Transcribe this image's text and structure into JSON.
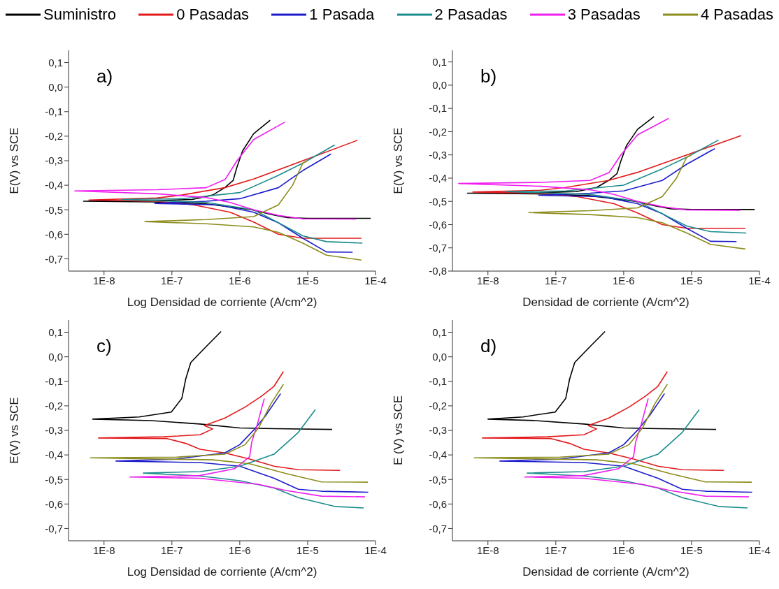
{
  "chart_data": [
    {
      "type": "line",
      "annotations": [
        "a)"
      ],
      "xlabel": "Log Densidad de corriente (A/cm^2)",
      "ylabel": "E(V) vs SCE",
      "log": "x",
      "legend": "top",
      "xlim": [
        3e-09,
        0.0001
      ],
      "xticks": [
        {
          "value": 1e-08,
          "label": "1E-8"
        },
        {
          "value": 1e-07,
          "label": "1E-7"
        },
        {
          "value": 1e-06,
          "label": "1E-6"
        },
        {
          "value": 1e-05,
          "label": "1E-5"
        },
        {
          "value": 0.0001,
          "label": "1E-4"
        }
      ],
      "ylim": [
        -0.75,
        0.15
      ],
      "yticks": [
        {
          "value": 0.1,
          "label": "0,1"
        },
        {
          "value": 0,
          "label": "0,0"
        },
        {
          "value": -0.1,
          "label": "-0,1"
        },
        {
          "value": -0.2,
          "label": "-0,2"
        },
        {
          "value": -0.3,
          "label": "-0,3"
        },
        {
          "value": -0.4,
          "label": "-0,4"
        },
        {
          "value": -0.5,
          "label": "-0,5"
        },
        {
          "value": -0.6,
          "label": "-0,6"
        },
        {
          "value": -0.7,
          "label": "-0,7"
        }
      ],
      "series": [
        {
          "name": "Suministro",
          "color": "#000000",
          "x": [
            8.5e-05,
            1e-05,
            5e-06,
            3e-06,
            1.5e-06,
            8e-07,
            3e-07,
            5e-08,
            5e-09,
            5e-08,
            2e-07,
            4e-07,
            6e-07,
            8e-07,
            9e-07,
            1.1e-06,
            1.6e-06,
            2.8e-06
          ],
          "values": [
            -0.535,
            -0.535,
            -0.532,
            -0.52,
            -0.5,
            -0.49,
            -0.475,
            -0.468,
            -0.465,
            -0.463,
            -0.458,
            -0.44,
            -0.41,
            -0.38,
            -0.33,
            -0.26,
            -0.19,
            -0.135
          ]
        },
        {
          "name": "0 Pasadas",
          "color": "#e3191c",
          "x": [
            6.2e-05,
            8.5e-06,
            3.7e-06,
            1.6e-06,
            7.2e-07,
            2.1e-07,
            6e-08,
            6e-09,
            6e-08,
            1.4e-07,
            6e-07,
            1.6e-06,
            8.5e-06,
            5.4e-05
          ],
          "values": [
            -0.616,
            -0.616,
            -0.6,
            -0.55,
            -0.51,
            -0.48,
            -0.465,
            -0.46,
            -0.452,
            -0.44,
            -0.41,
            -0.375,
            -0.3,
            -0.217
          ]
        },
        {
          "name": "1 Pasada",
          "color": "#1c1ccc",
          "x": [
            4.6e-05,
            1.9e-05,
            8.5e-06,
            3.7e-06,
            1.6e-06,
            4.8e-07,
            5.6e-08,
            3.2e-07,
            1e-06,
            3.7e-06,
            8.5e-06,
            2.2e-05
          ],
          "values": [
            -0.673,
            -0.672,
            -0.616,
            -0.553,
            -0.51,
            -0.48,
            -0.474,
            -0.465,
            -0.455,
            -0.41,
            -0.34,
            -0.273
          ]
        },
        {
          "name": "2 Pasadas",
          "color": "#1a8c8c",
          "x": [
            6.4e-05,
            1.9e-05,
            8.5e-06,
            3.7e-06,
            1.6e-06,
            3.2e-07,
            1.8e-08,
            1.4e-07,
            1e-06,
            3.7e-06,
            8.5e-06,
            2.5e-05
          ],
          "values": [
            -0.636,
            -0.63,
            -0.606,
            -0.553,
            -0.5,
            -0.47,
            -0.458,
            -0.455,
            -0.43,
            -0.36,
            -0.31,
            -0.236
          ]
        },
        {
          "name": "3 Pasadas",
          "color": "#f01cf0",
          "x": [
            5.2e-05,
            8.5e-06,
            3.7e-06,
            1.6e-06,
            7.2e-07,
            3.2e-07,
            6.1e-08,
            3.7e-09,
            6.1e-08,
            3.2e-07,
            6.1e-07,
            9.1e-07,
            1.6e-06,
            4.6e-06
          ],
          "values": [
            -0.538,
            -0.537,
            -0.523,
            -0.5,
            -0.47,
            -0.45,
            -0.435,
            -0.423,
            -0.418,
            -0.41,
            -0.376,
            -0.3,
            -0.214,
            -0.143
          ]
        },
        {
          "name": "4 Pasadas",
          "color": "#8c8c1c",
          "x": [
            6.2e-05,
            1.9e-05,
            8.5e-06,
            3.7e-06,
            1.6e-06,
            3.2e-07,
            4e-08,
            3.2e-07,
            1.6e-06,
            3.7e-06,
            6e-06,
            8.5e-06,
            1e-05
          ],
          "values": [
            -0.705,
            -0.685,
            -0.636,
            -0.592,
            -0.57,
            -0.557,
            -0.548,
            -0.54,
            -0.528,
            -0.48,
            -0.4,
            -0.31,
            -0.3
          ]
        }
      ]
    },
    {
      "type": "line",
      "annotations": [
        "b)"
      ],
      "xlabel": "Densidad de corriente (A/cm^2)",
      "ylabel": "E(V) vs SCE",
      "log": "x",
      "xlim": [
        3e-09,
        0.0001
      ],
      "xticks": [
        {
          "value": 1e-08,
          "label": "1E-8"
        },
        {
          "value": 1e-07,
          "label": "1E-7"
        },
        {
          "value": 1e-06,
          "label": "1E-6"
        },
        {
          "value": 1e-05,
          "label": "1E-5"
        },
        {
          "value": 0.0001,
          "label": "1E-4"
        }
      ],
      "ylim": [
        -0.8,
        0.15
      ],
      "yticks": [
        {
          "value": 0.1,
          "label": "0,1"
        },
        {
          "value": 0,
          "label": "0,0"
        },
        {
          "value": -0.1,
          "label": "-0,1"
        },
        {
          "value": -0.2,
          "label": "-0,2"
        },
        {
          "value": -0.3,
          "label": "-0,3"
        },
        {
          "value": -0.4,
          "label": "-0,4"
        },
        {
          "value": -0.5,
          "label": "-0,5"
        },
        {
          "value": -0.6,
          "label": "-0,6"
        },
        {
          "value": -0.7,
          "label": "-0,7"
        },
        {
          "value": -0.8,
          "label": "-0,8"
        }
      ],
      "series": [
        {
          "color": "#000000",
          "x": [
            8.5e-05,
            1e-05,
            5e-06,
            3e-06,
            1.5e-06,
            8e-07,
            3e-07,
            5e-08,
            5e-09,
            5e-08,
            2e-07,
            4e-07,
            6e-07,
            8e-07,
            9e-07,
            1.1e-06,
            1.6e-06,
            2.8e-06
          ],
          "values": [
            -0.535,
            -0.535,
            -0.532,
            -0.52,
            -0.5,
            -0.49,
            -0.475,
            -0.468,
            -0.465,
            -0.463,
            -0.458,
            -0.44,
            -0.41,
            -0.38,
            -0.33,
            -0.26,
            -0.19,
            -0.135
          ]
        },
        {
          "color": "#e3191c",
          "x": [
            6.2e-05,
            8.5e-06,
            3.7e-06,
            1.6e-06,
            7.2e-07,
            2.1e-07,
            6e-08,
            6e-09,
            6e-08,
            1.4e-07,
            6e-07,
            1.6e-06,
            8.5e-06,
            5.4e-05
          ],
          "values": [
            -0.616,
            -0.616,
            -0.6,
            -0.55,
            -0.51,
            -0.48,
            -0.465,
            -0.46,
            -0.452,
            -0.44,
            -0.41,
            -0.375,
            -0.3,
            -0.217
          ]
        },
        {
          "color": "#1c1ccc",
          "x": [
            4.6e-05,
            1.9e-05,
            8.5e-06,
            3.7e-06,
            1.6e-06,
            4.8e-07,
            5.6e-08,
            3.2e-07,
            1e-06,
            3.7e-06,
            8.5e-06,
            2.2e-05
          ],
          "values": [
            -0.673,
            -0.672,
            -0.616,
            -0.553,
            -0.51,
            -0.48,
            -0.474,
            -0.465,
            -0.455,
            -0.41,
            -0.34,
            -0.273
          ]
        },
        {
          "color": "#1a8c8c",
          "x": [
            6.4e-05,
            1.9e-05,
            8.5e-06,
            3.7e-06,
            1.6e-06,
            3.2e-07,
            1.8e-08,
            1.4e-07,
            1e-06,
            3.7e-06,
            8.5e-06,
            2.5e-05
          ],
          "values": [
            -0.636,
            -0.63,
            -0.606,
            -0.553,
            -0.5,
            -0.47,
            -0.458,
            -0.455,
            -0.43,
            -0.36,
            -0.31,
            -0.236
          ]
        },
        {
          "color": "#f01cf0",
          "x": [
            5.2e-05,
            8.5e-06,
            3.7e-06,
            1.6e-06,
            7.2e-07,
            3.2e-07,
            6.1e-08,
            3.7e-09,
            6.1e-08,
            3.2e-07,
            6.1e-07,
            9.1e-07,
            1.6e-06,
            4.6e-06
          ],
          "values": [
            -0.538,
            -0.537,
            -0.523,
            -0.5,
            -0.47,
            -0.45,
            -0.435,
            -0.423,
            -0.418,
            -0.41,
            -0.376,
            -0.3,
            -0.214,
            -0.143
          ]
        },
        {
          "color": "#8c8c1c",
          "x": [
            6.2e-05,
            1.9e-05,
            8.5e-06,
            3.7e-06,
            1.6e-06,
            3.2e-07,
            4e-08,
            3.2e-07,
            1.6e-06,
            3.7e-06,
            6e-06,
            8.5e-06,
            1e-05
          ],
          "values": [
            -0.705,
            -0.685,
            -0.636,
            -0.592,
            -0.57,
            -0.557,
            -0.548,
            -0.54,
            -0.528,
            -0.48,
            -0.4,
            -0.31,
            -0.3
          ]
        }
      ]
    },
    {
      "type": "line",
      "annotations": [
        "c)"
      ],
      "xlabel": "Log Densidad de corriente (A/cm^2)",
      "ylabel": "E(V) vs SCE",
      "log": "x",
      "xlim": [
        3e-09,
        0.0001
      ],
      "xticks": [
        {
          "value": 1e-08,
          "label": "1E-8"
        },
        {
          "value": 1e-07,
          "label": "1E-7"
        },
        {
          "value": 1e-06,
          "label": "1E-6"
        },
        {
          "value": 1e-05,
          "label": "1E-5"
        },
        {
          "value": 0.0001,
          "label": "1E-4"
        }
      ],
      "ylim": [
        -0.75,
        0.15
      ],
      "yticks": [
        {
          "value": 0.1,
          "label": "0,1"
        },
        {
          "value": 0,
          "label": "0,0"
        },
        {
          "value": -0.1,
          "label": "-0,1"
        },
        {
          "value": -0.2,
          "label": "-0,2"
        },
        {
          "value": -0.3,
          "label": "-0,3"
        },
        {
          "value": -0.4,
          "label": "-0,4"
        },
        {
          "value": -0.5,
          "label": "-0,5"
        },
        {
          "value": -0.6,
          "label": "-0,6"
        },
        {
          "value": -0.7,
          "label": "-0,7"
        }
      ],
      "series": [
        {
          "color": "#000000",
          "x": [
            2.3e-05,
            3.2e-06,
            1e-06,
            2.6e-07,
            5e-08,
            6.8e-09,
            3.3e-08,
            9.8e-08,
            1.4e-07,
            1.6e-07,
            1.9e-07,
            2.6e-07,
            3.6e-07,
            5.3e-07
          ],
          "values": [
            -0.296,
            -0.293,
            -0.29,
            -0.274,
            -0.26,
            -0.254,
            -0.245,
            -0.225,
            -0.17,
            -0.09,
            -0.023,
            0.016,
            0.056,
            0.103
          ]
        },
        {
          "color": "#e3191c",
          "x": [
            3e-05,
            7.3e-06,
            3.2e-06,
            1.4e-06,
            6e-07,
            2.6e-07,
            1.6e-07,
            8.3e-08,
            8.3e-09,
            7.6e-08,
            2.6e-07,
            4e-07,
            3e-07,
            6e-07,
            1.2e-06,
            2.1e-06,
            3.2e-06,
            4.4e-06
          ],
          "values": [
            -0.463,
            -0.46,
            -0.446,
            -0.417,
            -0.392,
            -0.377,
            -0.353,
            -0.333,
            -0.331,
            -0.326,
            -0.318,
            -0.294,
            -0.28,
            -0.25,
            -0.205,
            -0.16,
            -0.12,
            -0.06
          ]
        },
        {
          "color": "#1c1ccc",
          "x": [
            7.8e-05,
            1.6e-05,
            7.3e-06,
            3.2e-06,
            1e-06,
            2.6e-07,
            1.5e-08,
            1.15e-07,
            6e-07,
            1e-06,
            1.6e-06,
            2.4e-06,
            4e-06
          ],
          "values": [
            -0.552,
            -0.548,
            -0.54,
            -0.495,
            -0.446,
            -0.431,
            -0.425,
            -0.417,
            -0.392,
            -0.358,
            -0.299,
            -0.24,
            -0.15
          ]
        },
        {
          "color": "#1a8c8c",
          "x": [
            6.7e-05,
            2.5e-05,
            7.3e-06,
            3.2e-06,
            1e-06,
            2.6e-07,
            3.8e-08,
            2.6e-07,
            1e-06,
            3.2e-06,
            7.3e-06,
            1.3e-05
          ],
          "values": [
            -0.616,
            -0.61,
            -0.574,
            -0.535,
            -0.505,
            -0.486,
            -0.474,
            -0.468,
            -0.446,
            -0.397,
            -0.308,
            -0.215
          ]
        },
        {
          "color": "#f01cf0",
          "x": [
            7e-05,
            1.6e-05,
            4.8e-06,
            1.9e-06,
            2.6e-07,
            2.4e-08,
            2.6e-07,
            8.4e-07,
            1.4e-06,
            1.5e-06,
            1.8e-06,
            2.1e-06,
            2.3e-06
          ],
          "values": [
            -0.571,
            -0.568,
            -0.545,
            -0.52,
            -0.495,
            -0.49,
            -0.484,
            -0.456,
            -0.407,
            -0.348,
            -0.279,
            -0.21,
            -0.17
          ]
        },
        {
          "color": "#8c8c1c",
          "x": [
            7.7e-05,
            1.6e-05,
            4.8e-06,
            1.4e-06,
            4e-07,
            6.3e-09,
            1.15e-07,
            6e-07,
            1.2e-06,
            1.9e-06,
            2.9e-06,
            4.4e-06
          ],
          "values": [
            -0.511,
            -0.51,
            -0.476,
            -0.436,
            -0.42,
            -0.412,
            -0.409,
            -0.397,
            -0.358,
            -0.289,
            -0.19,
            -0.112
          ]
        }
      ]
    },
    {
      "type": "line",
      "annotations": [
        "d)"
      ],
      "xlabel": "Densidad de corriente (A/cm^2)",
      "ylabel": "E (V) vs SCE",
      "log": "x",
      "xlim": [
        3e-09,
        0.0001
      ],
      "xticks": [
        {
          "value": 1e-08,
          "label": "1E-8"
        },
        {
          "value": 1e-07,
          "label": "1E-7"
        },
        {
          "value": 1e-06,
          "label": "1E-6"
        },
        {
          "value": 1e-05,
          "label": "1E-5"
        },
        {
          "value": 0.0001,
          "label": "1E-4"
        }
      ],
      "ylim": [
        -0.75,
        0.15
      ],
      "yticks": [
        {
          "value": 0.1,
          "label": "0,1"
        },
        {
          "value": 0,
          "label": "0,0"
        },
        {
          "value": -0.1,
          "label": "-0,1"
        },
        {
          "value": -0.2,
          "label": "-0,2"
        },
        {
          "value": -0.3,
          "label": "-0,3"
        },
        {
          "value": -0.4,
          "label": "-0,4"
        },
        {
          "value": -0.5,
          "label": "-0,5"
        },
        {
          "value": -0.6,
          "label": "-0,6"
        },
        {
          "value": -0.7,
          "label": "-0,7"
        }
      ],
      "series": [
        {
          "color": "#000000",
          "x": [
            2.3e-05,
            3.2e-06,
            1e-06,
            2.6e-07,
            5e-08,
            1e-08,
            3.3e-08,
            9.8e-08,
            1.4e-07,
            1.6e-07,
            1.9e-07,
            2.6e-07,
            3.6e-07,
            5.3e-07
          ],
          "values": [
            -0.296,
            -0.293,
            -0.29,
            -0.274,
            -0.26,
            -0.254,
            -0.245,
            -0.225,
            -0.17,
            -0.09,
            -0.023,
            0.016,
            0.056,
            0.103
          ]
        },
        {
          "color": "#e3191c",
          "x": [
            3e-05,
            7.3e-06,
            3.2e-06,
            1.4e-06,
            6e-07,
            2.6e-07,
            1.6e-07,
            8.3e-08,
            8.3e-09,
            7.6e-08,
            2.6e-07,
            4e-07,
            3e-07,
            6e-07,
            1.2e-06,
            2.1e-06,
            3.2e-06,
            4.4e-06
          ],
          "values": [
            -0.463,
            -0.46,
            -0.446,
            -0.417,
            -0.392,
            -0.377,
            -0.353,
            -0.333,
            -0.331,
            -0.326,
            -0.318,
            -0.294,
            -0.28,
            -0.25,
            -0.205,
            -0.16,
            -0.12,
            -0.06
          ]
        },
        {
          "color": "#1c1ccc",
          "x": [
            7.8e-05,
            1.6e-05,
            7.3e-06,
            3.2e-06,
            1e-06,
            2.6e-07,
            1.5e-08,
            1.15e-07,
            6e-07,
            1e-06,
            1.6e-06,
            2.4e-06,
            4e-06
          ],
          "values": [
            -0.552,
            -0.548,
            -0.54,
            -0.495,
            -0.446,
            -0.431,
            -0.425,
            -0.417,
            -0.392,
            -0.358,
            -0.299,
            -0.24,
            -0.15
          ]
        },
        {
          "color": "#1a8c8c",
          "x": [
            6.7e-05,
            2.5e-05,
            7.3e-06,
            3.2e-06,
            1e-06,
            2.6e-07,
            3.8e-08,
            2.6e-07,
            1e-06,
            3.2e-06,
            7.3e-06,
            1.3e-05
          ],
          "values": [
            -0.616,
            -0.61,
            -0.574,
            -0.535,
            -0.505,
            -0.486,
            -0.474,
            -0.468,
            -0.446,
            -0.397,
            -0.308,
            -0.215
          ]
        },
        {
          "color": "#f01cf0",
          "x": [
            7e-05,
            1.6e-05,
            4.8e-06,
            1.9e-06,
            2.6e-07,
            3.5e-08,
            2.6e-07,
            8.4e-07,
            1.4e-06,
            1.5e-06,
            1.8e-06,
            2.1e-06,
            2.3e-06
          ],
          "values": [
            -0.571,
            -0.568,
            -0.545,
            -0.52,
            -0.495,
            -0.49,
            -0.484,
            -0.456,
            -0.407,
            -0.348,
            -0.279,
            -0.21,
            -0.17
          ]
        },
        {
          "color": "#8c8c1c",
          "x": [
            7.7e-05,
            1.6e-05,
            4.8e-06,
            1.4e-06,
            4e-07,
            6.3e-09,
            1.15e-07,
            6e-07,
            1.2e-06,
            1.9e-06,
            2.9e-06,
            4.4e-06
          ],
          "values": [
            -0.511,
            -0.51,
            -0.476,
            -0.436,
            -0.42,
            -0.412,
            -0.409,
            -0.397,
            -0.358,
            -0.289,
            -0.19,
            -0.112
          ]
        }
      ]
    }
  ]
}
